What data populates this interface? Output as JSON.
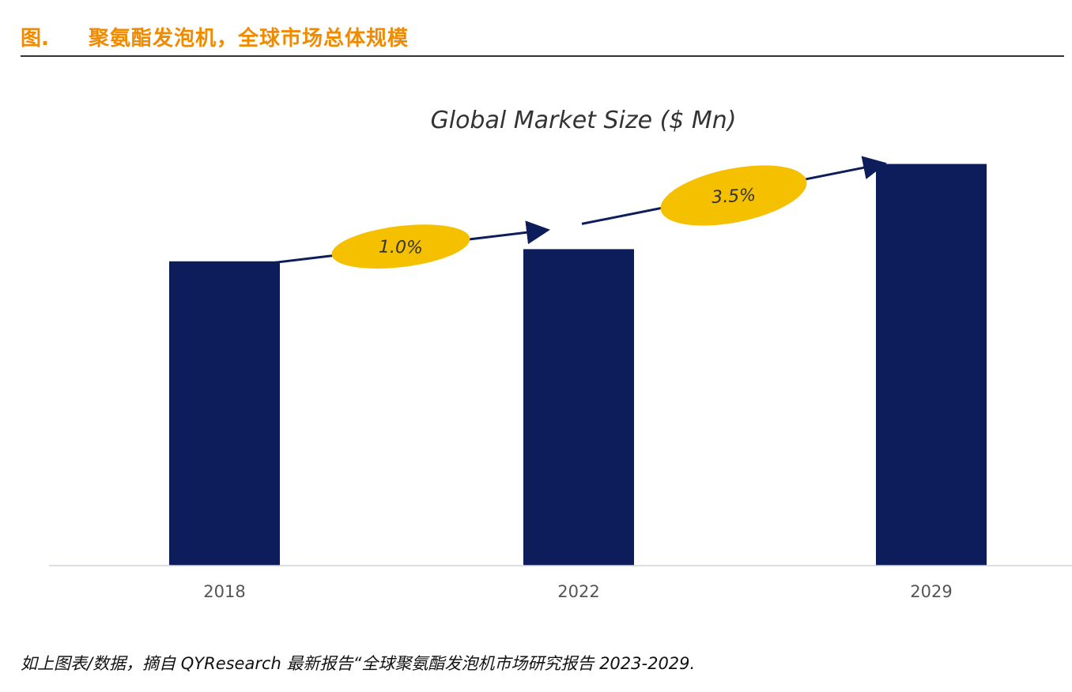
{
  "header": {
    "fig_label": "图.",
    "title": "聚氨酯发泡机，全球市场总体规模"
  },
  "chart_data": {
    "type": "bar",
    "title": "Global Market Size ($ Mn)",
    "categories": [
      "2018",
      "2022",
      "2029"
    ],
    "values": [
      100,
      104,
      132
    ],
    "ylim": [
      0,
      135
    ],
    "xlabel": "",
    "ylabel": "",
    "grid": false,
    "legend": "none",
    "annotations": [
      {
        "text": "1.0%",
        "from": "2018",
        "to": "2022"
      },
      {
        "text": "3.5%",
        "from": "2022",
        "to": "2029"
      }
    ],
    "colors": {
      "bar": "#0d1d5c",
      "badge": "#f5c000",
      "arrow": "#0d1d5c",
      "axis": "#d0d4da"
    }
  },
  "footer": {
    "source": "如上图表/数据，摘自 QYResearch 最新报告“全球聚氨酯发泡机市场研究报告 2023-2029."
  }
}
